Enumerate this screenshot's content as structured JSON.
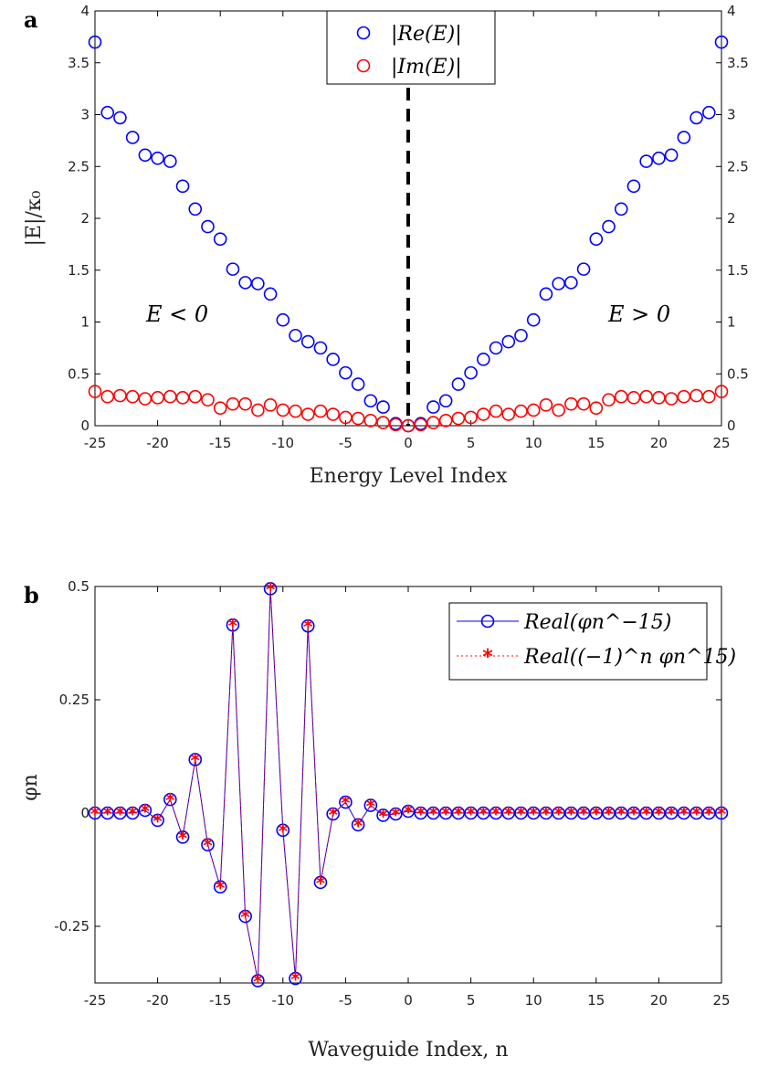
{
  "chart_data": [
    {
      "type": "scatter",
      "panel_label": "a",
      "xlabel": "Energy Level Index",
      "ylabel": "|E|/κ₀",
      "xlim": [
        -25,
        25
      ],
      "ylim": [
        0,
        4
      ],
      "xticks": [
        "-25",
        "-20",
        "-15",
        "-10",
        "-5",
        "0",
        "5",
        "10",
        "15",
        "20",
        "25"
      ],
      "yticks": [
        "0",
        "0.5",
        "1",
        "1.5",
        "2",
        "2.5",
        "3",
        "3.5",
        "4"
      ],
      "annotations": {
        "left": "E < 0",
        "right": "E > 0"
      },
      "series": [
        {
          "name": "|Re(E)|",
          "color": "#0000ff",
          "x": [
            -25,
            -24,
            -23,
            -22,
            -21,
            -20,
            -19,
            -18,
            -17,
            -16,
            -15,
            -14,
            -13,
            -12,
            -11,
            -10,
            -9,
            -8,
            -7,
            -6,
            -5,
            -4,
            -3,
            -2,
            -1,
            0,
            1,
            2,
            3,
            4,
            5,
            6,
            7,
            8,
            9,
            10,
            11,
            12,
            13,
            14,
            15,
            16,
            17,
            18,
            19,
            20,
            21,
            22,
            23,
            24,
            25
          ],
          "values": [
            3.7,
            3.02,
            2.97,
            2.78,
            2.61,
            2.58,
            2.55,
            2.31,
            2.09,
            1.92,
            1.8,
            1.51,
            1.38,
            1.37,
            1.27,
            1.02,
            0.87,
            0.81,
            0.75,
            0.64,
            0.51,
            0.4,
            0.24,
            0.18,
            0.02,
            0.0,
            0.02,
            0.18,
            0.24,
            0.4,
            0.51,
            0.64,
            0.75,
            0.81,
            0.87,
            1.02,
            1.27,
            1.37,
            1.38,
            1.51,
            1.8,
            1.92,
            2.09,
            2.31,
            2.55,
            2.58,
            2.61,
            2.78,
            2.97,
            3.02,
            3.7
          ]
        },
        {
          "name": "|Im(E)|",
          "color": "#ff0000",
          "x": [
            -25,
            -24,
            -23,
            -22,
            -21,
            -20,
            -19,
            -18,
            -17,
            -16,
            -15,
            -14,
            -13,
            -12,
            -11,
            -10,
            -9,
            -8,
            -7,
            -6,
            -5,
            -4,
            -3,
            -2,
            -1,
            0,
            1,
            2,
            3,
            4,
            5,
            6,
            7,
            8,
            9,
            10,
            11,
            12,
            13,
            14,
            15,
            16,
            17,
            18,
            19,
            20,
            21,
            22,
            23,
            24,
            25
          ],
          "values": [
            0.33,
            0.28,
            0.29,
            0.28,
            0.26,
            0.27,
            0.28,
            0.27,
            0.28,
            0.25,
            0.17,
            0.21,
            0.21,
            0.15,
            0.2,
            0.15,
            0.14,
            0.11,
            0.14,
            0.11,
            0.08,
            0.07,
            0.05,
            0.03,
            0.01,
            0.0,
            0.01,
            0.03,
            0.05,
            0.07,
            0.08,
            0.11,
            0.14,
            0.11,
            0.14,
            0.15,
            0.2,
            0.15,
            0.21,
            0.21,
            0.17,
            0.25,
            0.28,
            0.27,
            0.28,
            0.27,
            0.26,
            0.28,
            0.29,
            0.28,
            0.33
          ]
        }
      ]
    },
    {
      "type": "line",
      "panel_label": "b",
      "xlabel": "Waveguide Index, n",
      "ylabel": "φn",
      "xlim": [
        -25,
        25
      ],
      "ylim": [
        -0.375,
        0.5
      ],
      "xticks": [
        "-25",
        "-20",
        "-15",
        "-10",
        "-5",
        "0",
        "5",
        "10",
        "15",
        "20",
        "25"
      ],
      "yticks": [
        "-0.25",
        "0",
        "0.25",
        "0.5"
      ],
      "series": [
        {
          "name": "Real(φn^−15)",
          "color": "#0000ff",
          "x": [
            -25,
            -24,
            -23,
            -22,
            -21,
            -20,
            -19,
            -18,
            -17,
            -16,
            -15,
            -14,
            -13,
            -12,
            -11,
            -10,
            -9,
            -8,
            -7,
            -6,
            -5,
            -4,
            -3,
            -2,
            -1,
            0,
            1,
            2,
            3,
            4,
            5,
            6,
            7,
            8,
            9,
            10,
            11,
            12,
            13,
            14,
            15,
            16,
            17,
            18,
            19,
            20,
            21,
            22,
            23,
            24,
            25
          ],
          "values": [
            0,
            0,
            0,
            0,
            0.006,
            -0.016,
            0.03,
            -0.053,
            0.118,
            -0.07,
            -0.163,
            0.415,
            -0.228,
            -0.37,
            0.495,
            -0.038,
            -0.365,
            0.413,
            -0.153,
            -0.002,
            0.024,
            -0.026,
            0.017,
            -0.005,
            -0.002,
            0.004,
            0,
            0,
            0,
            0,
            0,
            0,
            0,
            0,
            0,
            0,
            0,
            0,
            0,
            0,
            0,
            0,
            0,
            0,
            0,
            0,
            0,
            0,
            0,
            0,
            0
          ]
        },
        {
          "name": "Real((−1)^n φn^15)",
          "color": "#ff0000",
          "x": [
            -25,
            -24,
            -23,
            -22,
            -21,
            -20,
            -19,
            -18,
            -17,
            -16,
            -15,
            -14,
            -13,
            -12,
            -11,
            -10,
            -9,
            -8,
            -7,
            -6,
            -5,
            -4,
            -3,
            -2,
            -1,
            0,
            1,
            2,
            3,
            4,
            5,
            6,
            7,
            8,
            9,
            10,
            11,
            12,
            13,
            14,
            15,
            16,
            17,
            18,
            19,
            20,
            21,
            22,
            23,
            24,
            25
          ],
          "values": [
            0,
            0,
            0,
            0,
            0.006,
            -0.016,
            0.03,
            -0.053,
            0.118,
            -0.07,
            -0.163,
            0.415,
            -0.228,
            -0.37,
            0.495,
            -0.038,
            -0.365,
            0.413,
            -0.153,
            -0.002,
            0.024,
            -0.026,
            0.017,
            -0.005,
            -0.002,
            0.004,
            0,
            0,
            0,
            0,
            0,
            0,
            0,
            0,
            0,
            0,
            0,
            0,
            0,
            0,
            0,
            0,
            0,
            0,
            0,
            0,
            0,
            0,
            0,
            0,
            0
          ]
        }
      ]
    }
  ]
}
